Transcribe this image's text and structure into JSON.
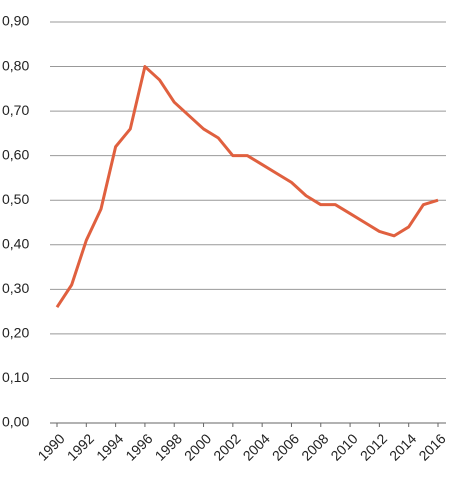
{
  "chart_data": {
    "type": "line",
    "x": [
      1990,
      1991,
      1992,
      1993,
      1994,
      1995,
      1996,
      1997,
      1998,
      1999,
      2000,
      2001,
      2002,
      2003,
      2004,
      2005,
      2006,
      2007,
      2008,
      2009,
      2010,
      2011,
      2012,
      2013,
      2014,
      2015,
      2016
    ],
    "series": [
      {
        "color": "#e0603f",
        "values": [
          0.26,
          0.31,
          0.41,
          0.48,
          0.62,
          0.66,
          0.8,
          0.77,
          0.72,
          0.69,
          0.66,
          0.64,
          0.6,
          0.6,
          0.58,
          0.56,
          0.54,
          0.51,
          0.49,
          0.49,
          0.47,
          0.45,
          0.43,
          0.42,
          0.44,
          0.49,
          0.5
        ]
      }
    ],
    "xlim": [
      1990,
      2016
    ],
    "xticks": [
      1990,
      1992,
      1994,
      1996,
      1998,
      2000,
      2002,
      2004,
      2006,
      2008,
      2010,
      2012,
      2014,
      2016
    ],
    "ylim": [
      0,
      0.9
    ],
    "yticks": [
      {
        "value": 0,
        "label": "0,00"
      },
      {
        "value": 0.1,
        "label": "0,10"
      },
      {
        "value": 0.2,
        "label": "0,20"
      },
      {
        "value": 0.3,
        "label": "0,30"
      },
      {
        "value": 0.4,
        "label": "0,40"
      },
      {
        "value": 0.5,
        "label": "0,50"
      },
      {
        "value": 0.6,
        "label": "0,60"
      },
      {
        "value": 0.7,
        "label": "0,70"
      },
      {
        "value": 0.8,
        "label": "0,80"
      },
      {
        "value": 0.9,
        "label": "0,90"
      }
    ],
    "grid": true
  }
}
